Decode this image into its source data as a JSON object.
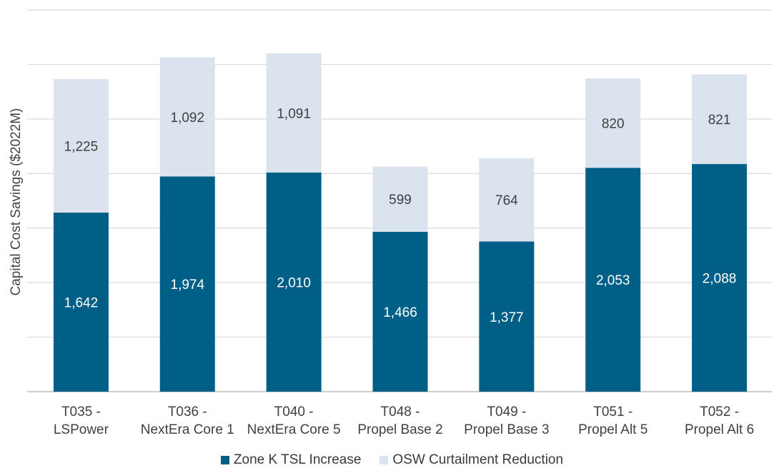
{
  "chart_data": {
    "type": "bar",
    "stacked": true,
    "ylabel": "Capital Cost Savings ($2022M)",
    "ylim": [
      0,
      3500
    ],
    "gridlines": true,
    "legend_position": "bottom",
    "categories": [
      "T035 -\nLSPower",
      "T036 -\nNextEra Core 1",
      "T040 -\nNextEra Core 5",
      "T048 -\nPropel Base 2",
      "T049 -\nPropel Base 3",
      "T051 -\nPropel Alt 5",
      "T052 -\nPropel Alt 6"
    ],
    "series": [
      {
        "name": "Zone K TSL Increase",
        "color": "#005F87",
        "values": [
          1642,
          1974,
          2010,
          1466,
          1377,
          2053,
          2088
        ],
        "labels": [
          "1,642",
          "1,974",
          "2,010",
          "1,466",
          "1,377",
          "2,053",
          "2,088"
        ]
      },
      {
        "name": "OSW Curtailment Reduction",
        "color": "#DAE3EE",
        "values": [
          1225,
          1092,
          1091,
          599,
          764,
          820,
          821
        ],
        "labels": [
          "1,225",
          "1,092",
          "1,091",
          "599",
          "764",
          "820",
          "821"
        ]
      }
    ]
  }
}
